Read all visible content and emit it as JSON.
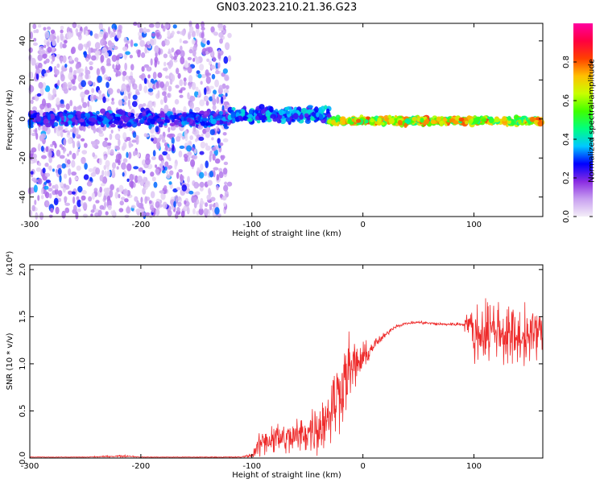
{
  "title": "GN03.2023.210.21.36.G23",
  "colors": {
    "snr_line": "#ee2a2a",
    "text": "#000000",
    "axis": "#000000"
  },
  "chart_data": [
    {
      "type": "heatmap",
      "xlabel": "Height of straight line (km)",
      "ylabel": "Frequency (Hz)",
      "xlim": [
        -300,
        162
      ],
      "ylim": [
        -50,
        49
      ],
      "xticks": [
        -300,
        -200,
        -100,
        0,
        100
      ],
      "yticks": [
        -40,
        -20,
        0,
        20,
        40
      ],
      "xtick_labels": [
        "-300",
        "-200",
        "-100",
        "0",
        "100"
      ],
      "ytick_labels": [
        "-40",
        "-20",
        "0",
        "20",
        "40"
      ],
      "description_structure": [
        {
          "x_range": [
            -300,
            -120
          ],
          "freq_spread": [
            -50,
            49
          ],
          "amplitude": 0.15
        },
        {
          "x_range": [
            -300,
            -120
          ],
          "freq_center": 0,
          "amplitude": 0.3
        },
        {
          "x_range": [
            -120,
            -30
          ],
          "freq_center": 2,
          "amplitude": 0.35
        },
        {
          "x_range": [
            -30,
            162
          ],
          "freq_center": -1,
          "amplitude": 0.7
        }
      ],
      "colorbar": {
        "label": "Normalized spectral amplitude",
        "range": [
          0,
          1
        ],
        "ticks": [
          0.0,
          0.2,
          0.4,
          0.6,
          0.8
        ],
        "tick_labels": [
          "0.0",
          "0.2",
          "0.4",
          "0.6",
          "0.8"
        ],
        "colormap": [
          "#f4eef8",
          "#c8a0f0",
          "#8a2be2",
          "#0000ff",
          "#00c8ff",
          "#00ff80",
          "#40ff00",
          "#c8ff00",
          "#ffc000",
          "#ff4000",
          "#ff0040",
          "#ff00a0"
        ]
      }
    },
    {
      "type": "line",
      "xlabel": "Height of straight line (km)",
      "ylabel": "SNR (10 * v/v)",
      "ylabel_multiplier": "(x10⁴)",
      "xlim": [
        -300,
        162
      ],
      "ylim": [
        0,
        2.05
      ],
      "xticks": [
        -300,
        -200,
        -100,
        0,
        100
      ],
      "yticks": [
        0.0,
        0.5,
        1.0,
        1.5,
        2.0
      ],
      "xtick_labels": [
        "-300",
        "-200",
        "-100",
        "0",
        "100"
      ],
      "ytick_labels": [
        "0.0",
        "0.5",
        "1.0",
        "1.5",
        "2.0"
      ],
      "series": [
        {
          "x": [
            -300,
            -250,
            -220,
            -210,
            -200,
            -150,
            -110,
            -100,
            -90,
            -80,
            -70,
            -60,
            -50,
            -40,
            -35,
            -30,
            -25,
            -20,
            -15,
            -10,
            -5,
            0,
            5,
            10,
            15,
            20,
            25,
            30,
            40,
            50,
            60,
            70,
            80,
            90,
            95,
            100,
            110,
            120,
            130,
            140,
            150,
            162
          ],
          "y": [
            0.01,
            0.01,
            0.02,
            0.02,
            0.01,
            0.01,
            0.01,
            0.03,
            0.18,
            0.22,
            0.2,
            0.22,
            0.28,
            0.32,
            0.4,
            0.5,
            0.6,
            0.75,
            0.9,
            0.95,
            1.0,
            1.05,
            1.12,
            1.2,
            1.25,
            1.3,
            1.36,
            1.4,
            1.43,
            1.44,
            1.43,
            1.42,
            1.42,
            1.42,
            1.45,
            1.3,
            1.35,
            1.38,
            1.3,
            1.28,
            1.3,
            1.35
          ],
          "noise": [
            0.003,
            0.003,
            0.01,
            0.01,
            0.003,
            0.003,
            0.005,
            0.02,
            0.15,
            0.16,
            0.16,
            0.18,
            0.2,
            0.25,
            0.3,
            0.35,
            0.35,
            0.35,
            0.35,
            0.3,
            0.2,
            0.15,
            0.1,
            0.06,
            0.04,
            0.03,
            0.02,
            0.015,
            0.015,
            0.015,
            0.015,
            0.015,
            0.015,
            0.02,
            0.15,
            0.25,
            0.3,
            0.3,
            0.3,
            0.28,
            0.25,
            0.2
          ]
        }
      ]
    }
  ]
}
